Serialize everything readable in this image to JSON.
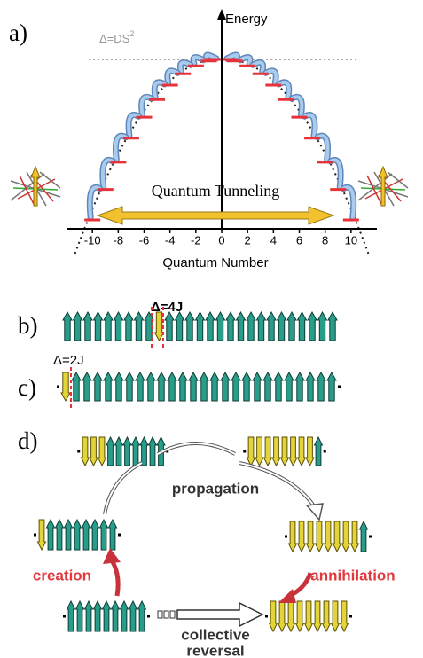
{
  "panel_a": {
    "label": "a)",
    "y_axis_label": "Energy",
    "barrier_label": "Δ=DS",
    "barrier_label_sup": "2",
    "tunneling_label": "Quantum Tunneling",
    "x_axis_label": "Quantum Number",
    "xlim": [
      -12,
      12
    ],
    "xticks": [
      -10,
      -8,
      -6,
      -4,
      -2,
      0,
      2,
      4,
      6,
      8,
      10
    ]
  },
  "panel_b": {
    "label": "b)",
    "annotation": "Δ=4J"
  },
  "panel_c": {
    "label": "c)",
    "annotation": "Δ=2J"
  },
  "panel_d": {
    "label": "d)",
    "propagation": "propagation",
    "creation": "creation",
    "annihilation": "annihilation",
    "collective_reversal": [
      "collective",
      "reversal"
    ]
  }
}
